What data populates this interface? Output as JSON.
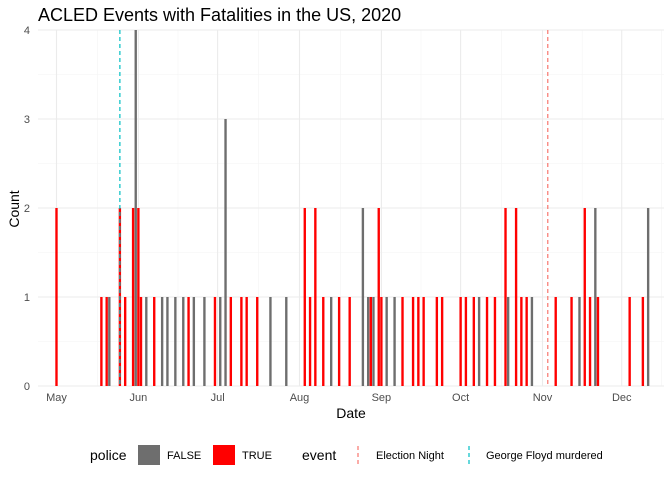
{
  "chart_data": {
    "type": "bar",
    "title": "ACLED Events with Fatalities in the US, 2020",
    "xlabel": "Date",
    "ylabel": "Count",
    "xlim": [
      "2020-04-24",
      "2020-12-17"
    ],
    "ylim": [
      0,
      4
    ],
    "x_ticks": [
      {
        "date": "2020-05-01",
        "label": "May"
      },
      {
        "date": "2020-06-01",
        "label": "Jun"
      },
      {
        "date": "2020-07-01",
        "label": "Jul"
      },
      {
        "date": "2020-08-01",
        "label": "Aug"
      },
      {
        "date": "2020-09-01",
        "label": "Sep"
      },
      {
        "date": "2020-10-01",
        "label": "Oct"
      },
      {
        "date": "2020-11-01",
        "label": "Nov"
      },
      {
        "date": "2020-12-01",
        "label": "Dec"
      }
    ],
    "y_ticks": [
      0,
      1,
      2,
      3,
      4
    ],
    "grid": true,
    "legend_position": "bottom",
    "fill_legend": {
      "title": "police",
      "entries": [
        {
          "label": "FALSE",
          "color": "#6e6e6e"
        },
        {
          "label": "TRUE",
          "color": "#ff0000"
        }
      ]
    },
    "event_legend": {
      "title": "event",
      "entries": [
        {
          "label": "Election Night",
          "color": "#f8766d"
        },
        {
          "label": "George Floyd murdered",
          "color": "#00bfc4"
        }
      ]
    },
    "events": [
      {
        "label": "Election Night",
        "date": "2020-11-03"
      },
      {
        "label": "George Floyd murdered",
        "date": "2020-05-25"
      }
    ],
    "series": [
      {
        "name": "FALSE",
        "points": [
          [
            "2020-05-21",
            1
          ],
          [
            "2020-05-31",
            4
          ],
          [
            "2020-06-04",
            1
          ],
          [
            "2020-06-10",
            1
          ],
          [
            "2020-06-12",
            1
          ],
          [
            "2020-06-15",
            1
          ],
          [
            "2020-06-18",
            1
          ],
          [
            "2020-06-22",
            1
          ],
          [
            "2020-06-26",
            1
          ],
          [
            "2020-07-02",
            1
          ],
          [
            "2020-07-04",
            3
          ],
          [
            "2020-07-21",
            1
          ],
          [
            "2020-07-27",
            1
          ],
          [
            "2020-08-13",
            1
          ],
          [
            "2020-08-25",
            2
          ],
          [
            "2020-08-27",
            1
          ],
          [
            "2020-08-29",
            1
          ],
          [
            "2020-09-03",
            1
          ],
          [
            "2020-09-06",
            1
          ],
          [
            "2020-10-08",
            1
          ],
          [
            "2020-10-19",
            1
          ],
          [
            "2020-10-28",
            1
          ],
          [
            "2020-11-15",
            1
          ],
          [
            "2020-11-21",
            2
          ],
          [
            "2020-12-11",
            2
          ]
        ]
      },
      {
        "name": "TRUE",
        "points": [
          [
            "2020-05-01",
            2
          ],
          [
            "2020-05-18",
            1
          ],
          [
            "2020-05-20",
            1
          ],
          [
            "2020-05-25",
            2
          ],
          [
            "2020-05-27",
            1
          ],
          [
            "2020-05-30",
            2
          ],
          [
            "2020-06-01",
            2
          ],
          [
            "2020-06-02",
            1
          ],
          [
            "2020-06-07",
            1
          ],
          [
            "2020-06-20",
            1
          ],
          [
            "2020-06-30",
            1
          ],
          [
            "2020-07-06",
            1
          ],
          [
            "2020-07-10",
            1
          ],
          [
            "2020-07-12",
            1
          ],
          [
            "2020-07-16",
            1
          ],
          [
            "2020-08-03",
            2
          ],
          [
            "2020-08-05",
            1
          ],
          [
            "2020-08-07",
            2
          ],
          [
            "2020-08-10",
            1
          ],
          [
            "2020-08-16",
            1
          ],
          [
            "2020-08-20",
            1
          ],
          [
            "2020-08-28",
            1
          ],
          [
            "2020-08-31",
            2
          ],
          [
            "2020-09-01",
            1
          ],
          [
            "2020-09-09",
            1
          ],
          [
            "2020-09-13",
            1
          ],
          [
            "2020-09-15",
            1
          ],
          [
            "2020-09-17",
            1
          ],
          [
            "2020-09-22",
            1
          ],
          [
            "2020-09-24",
            1
          ],
          [
            "2020-10-01",
            1
          ],
          [
            "2020-10-03",
            1
          ],
          [
            "2020-10-06",
            1
          ],
          [
            "2020-10-11",
            1
          ],
          [
            "2020-10-14",
            1
          ],
          [
            "2020-10-18",
            2
          ],
          [
            "2020-10-22",
            2
          ],
          [
            "2020-10-24",
            1
          ],
          [
            "2020-10-26",
            1
          ],
          [
            "2020-11-06",
            1
          ],
          [
            "2020-11-12",
            1
          ],
          [
            "2020-11-17",
            2
          ],
          [
            "2020-11-19",
            1
          ],
          [
            "2020-11-22",
            1
          ],
          [
            "2020-12-04",
            1
          ],
          [
            "2020-12-09",
            1
          ]
        ]
      }
    ]
  }
}
